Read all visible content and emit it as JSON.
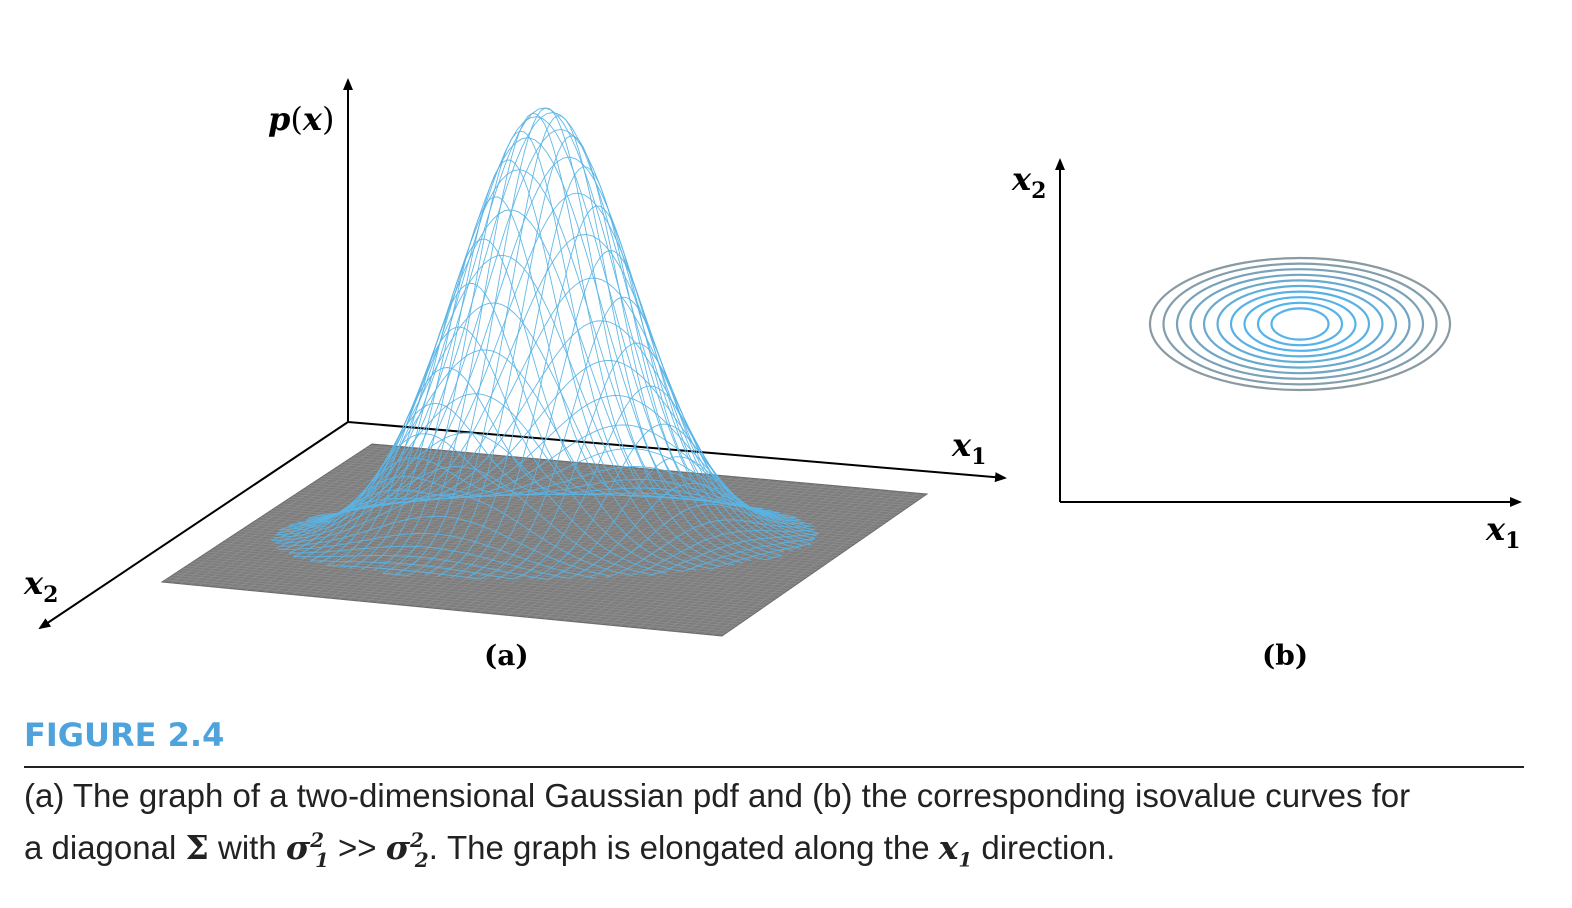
{
  "figure": {
    "panel_a": {
      "label": "(a)",
      "axis_z": "p(x)",
      "axis_x1": "x",
      "axis_x1_sub": "1",
      "axis_x2": "x",
      "axis_x2_sub": "2"
    },
    "panel_b": {
      "label": "(b)",
      "axis_y": "x",
      "axis_y_sub": "2",
      "axis_x": "x",
      "axis_x_sub": "1",
      "contour_count": 10
    },
    "colors": {
      "surface": "#5ab4e6",
      "floor": "#7a7a7a",
      "contour_outer": "#8a9aa2",
      "contour_inner": "#55b2ea",
      "title": "#4fa3dc"
    }
  },
  "title": "FIGURE 2.4",
  "caption": {
    "p1": "(a) The graph of a two-dimensional Gaussian pdf and (b) the corresponding isovalue curves for",
    "p2": "a diagonal ",
    "sigma_symbol": "Σ",
    "p3": " with ",
    "s1": "σ",
    "s1_sup": "2",
    "s1_sub": "1",
    "gg": " >> ",
    "s2": "σ",
    "s2_sup": "2",
    "s2_sub": "2",
    "p4": ". The graph is elongated along the ",
    "xvar": "x",
    "xvar_sub": "1",
    "p5": " direction."
  }
}
